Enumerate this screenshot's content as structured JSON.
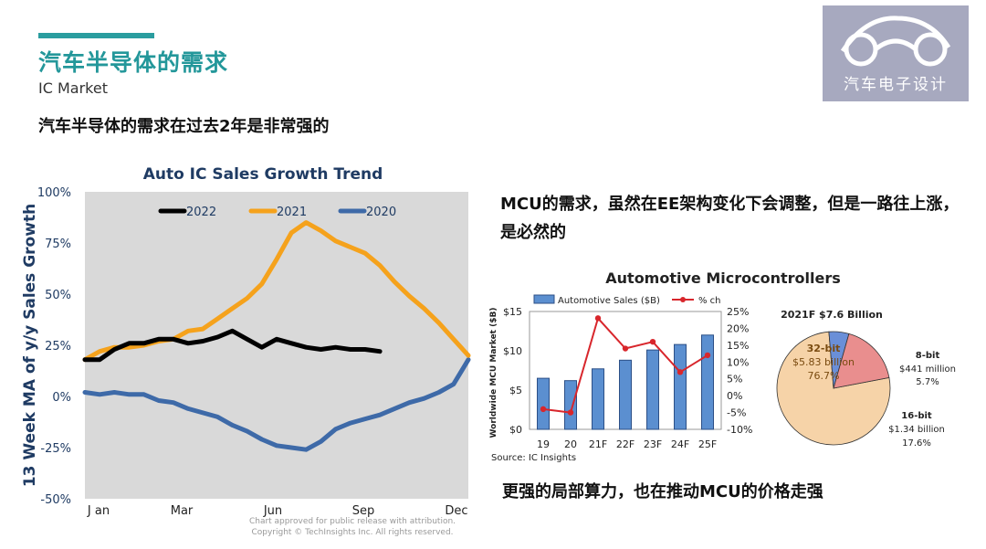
{
  "page": {
    "title": "汽车半导体的需求",
    "subtitle": "IC Market",
    "headline": "汽车半导体的需求在过去2年是非常强的",
    "note1": "MCU的需求，虽然在EE架构变化下会调整，但是一路往上涨，是必然的",
    "note2": "更强的局部算力，也在推动MCU的价格走强",
    "logo_text": "汽车电子设计"
  },
  "chart_data": [
    {
      "type": "line",
      "title": "Auto IC Sales Growth Trend",
      "ylabel": "13 Week MA of y/y Sales Growth",
      "ylim": [
        -50,
        100
      ],
      "y_ticks": [
        "100%",
        "75%",
        "50%",
        "25%",
        "0%",
        "-25%",
        "-50%"
      ],
      "x_ticks": [
        "J an",
        "Mar",
        "Jun",
        "Sep",
        "Dec"
      ],
      "xlim": [
        0,
        52
      ],
      "grid": false,
      "legend_position": "top",
      "footnote": [
        "Chart approved  for public release with attribution.",
        "Copyright © TechInsights Inc.  All rights reserved."
      ],
      "series": [
        {
          "name": "2022",
          "color": "#000000",
          "x": [
            0,
            2,
            4,
            6,
            8,
            10,
            12,
            14,
            16,
            18,
            20,
            22,
            24,
            26,
            28,
            30,
            32,
            34,
            36,
            38,
            40
          ],
          "y": [
            18,
            18,
            23,
            26,
            26,
            28,
            28,
            26,
            27,
            29,
            32,
            28,
            24,
            28,
            26,
            24,
            23,
            24,
            23,
            23,
            22
          ]
        },
        {
          "name": "2021",
          "color": "#f5a21c",
          "x": [
            0,
            2,
            4,
            6,
            8,
            10,
            12,
            14,
            16,
            18,
            20,
            22,
            24,
            26,
            28,
            30,
            32,
            34,
            36,
            38,
            40,
            42,
            44,
            46,
            48,
            50,
            52
          ],
          "y": [
            18,
            22,
            24,
            24,
            25,
            27,
            28,
            32,
            33,
            38,
            43,
            48,
            55,
            67,
            80,
            85,
            81,
            76,
            73,
            70,
            64,
            56,
            49,
            43,
            36,
            28,
            20
          ]
        },
        {
          "name": "2020",
          "color": "#3e6aa8",
          "x": [
            0,
            2,
            4,
            6,
            8,
            10,
            12,
            14,
            16,
            18,
            20,
            22,
            24,
            26,
            28,
            30,
            32,
            34,
            36,
            38,
            40,
            42,
            44,
            46,
            48,
            50,
            52
          ],
          "y": [
            2,
            1,
            2,
            1,
            1,
            -2,
            -3,
            -6,
            -8,
            -10,
            -14,
            -17,
            -21,
            -24,
            -25,
            -26,
            -22,
            -16,
            -13,
            -11,
            -9,
            -6,
            -3,
            -1,
            2,
            6,
            18
          ]
        }
      ]
    },
    {
      "type": "bar",
      "title": "Automotive Microcontrollers",
      "categories": [
        "19",
        "20",
        "21F",
        "22F",
        "23F",
        "24F",
        "25F"
      ],
      "ylabel": "Worldwide MCU Market ($B)",
      "ylim": [
        0,
        15
      ],
      "y_ticks_left": [
        "$15",
        "$10",
        "$5",
        "$0"
      ],
      "y2lim": [
        -10,
        25
      ],
      "y_ticks_right": [
        "25%",
        "20%",
        "15%",
        "10%",
        "5%",
        "0%",
        "-5%",
        "-10%"
      ],
      "source": "Source: IC Insights",
      "series": [
        {
          "name": "Automotive Sales ($B)",
          "type": "bar",
          "color": "#5b8fd0",
          "values": [
            6.5,
            6.2,
            7.7,
            8.8,
            10.1,
            10.8,
            12.0
          ]
        },
        {
          "name": "% ch",
          "type": "line",
          "axis": "right",
          "color": "#d8262c",
          "values": [
            -4,
            -5,
            23,
            14,
            16,
            7,
            12
          ]
        }
      ]
    },
    {
      "type": "pie",
      "title": "2021F $7.6 Billion",
      "slices": [
        {
          "name": "32-bit",
          "value_label": "$5.83 billion",
          "percent": 76.7,
          "color": "#f6d3a8"
        },
        {
          "name": "8-bit",
          "value_label": "$441 million",
          "percent": 5.7,
          "color": "#6a8fd8"
        },
        {
          "name": "16-bit",
          "value_label": "$1.34 billion",
          "percent": 17.6,
          "color": "#e98e8e"
        }
      ]
    }
  ]
}
